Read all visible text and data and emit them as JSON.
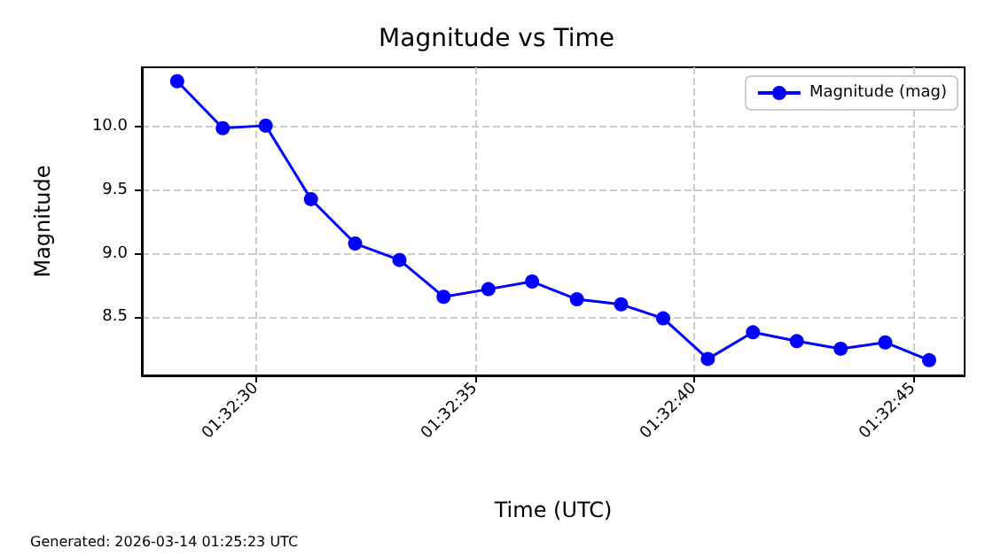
{
  "chart_data": {
    "type": "line",
    "title": "Magnitude vs Time",
    "xlabel": "Time (UTC)",
    "ylabel": "Magnitude",
    "annotations": [
      "Generated: 2026-03-14 01:25:23 UTC"
    ],
    "x": [
      1.541166,
      1.541455,
      1.541727,
      1.542014,
      1.542294,
      1.542575,
      1.542855,
      1.543139,
      1.543416,
      1.5437,
      1.54398,
      1.544247,
      1.54453,
      1.544816,
      1.545094,
      1.545372,
      1.545655,
      1.545933
    ],
    "series": [
      {
        "name": "Magnitude (mag)",
        "color": "#0000ff",
        "values": [
          10.36,
          9.99,
          10.01,
          9.43,
          9.08,
          8.95,
          8.66,
          8.72,
          8.78,
          8.64,
          8.6,
          8.49,
          8.17,
          8.38,
          8.31,
          8.25,
          8.3,
          8.16
        ]
      }
    ],
    "xlim": [
      1.540942,
      1.546158
    ],
    "xticks": [
      {
        "value": 1.541667,
        "label": "01:32:30"
      },
      {
        "value": 1.543056,
        "label": "01:32:35"
      },
      {
        "value": 1.544444,
        "label": "01:32:40"
      },
      {
        "value": 1.545833,
        "label": "01:32:45"
      }
    ],
    "ylim": [
      8.04,
      10.47
    ],
    "yticks": [
      {
        "value": 8.5,
        "label": "8.5"
      },
      {
        "value": 9.0,
        "label": "9.0"
      },
      {
        "value": 9.5,
        "label": "9.5"
      },
      {
        "value": 10.0,
        "label": "10.0"
      }
    ],
    "grid": true,
    "legend": "top right",
    "marker": "circle",
    "line_style": "solid"
  }
}
